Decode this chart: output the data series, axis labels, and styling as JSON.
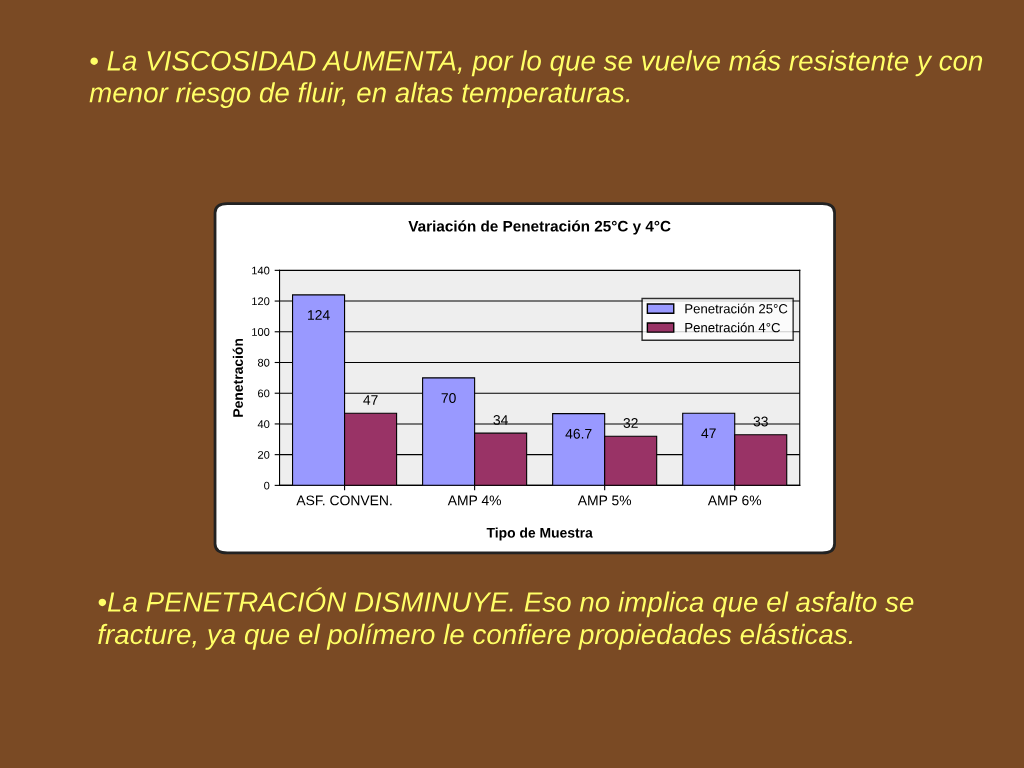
{
  "chart_data": {
    "type": "bar",
    "title": "Variación de Penetración 25°C y 4°C",
    "xlabel": "Tipo de Muestra",
    "ylabel": "Penetración",
    "categories": [
      "ASF. CONVEN.",
      "AMP 4%",
      "AMP 5%",
      "AMP 6%"
    ],
    "series": [
      {
        "name": "Penetración 25°C",
        "color": "#9999ff",
        "values": [
          124,
          70,
          46.7,
          47
        ]
      },
      {
        "name": "Penetración 4°C",
        "color": "#993366",
        "values": [
          47,
          34,
          32,
          33
        ]
      }
    ],
    "ylim": [
      0,
      140
    ],
    "yticks": [
      0,
      20,
      40,
      60,
      80,
      100,
      120,
      140
    ],
    "grid": "y",
    "legend": "top right",
    "data_labels": true,
    "annotations": [
      "• La VISCOSIDAD AUMENTA, por lo que se vuelve más resistente y con menor riesgo de fluir, en altas temperaturas.",
      "•La PENETRACIÓN DISMINUYE. Eso no implica que el asfalto se fracture, ya que el polímero le confiere propiedades elásticas."
    ]
  }
}
